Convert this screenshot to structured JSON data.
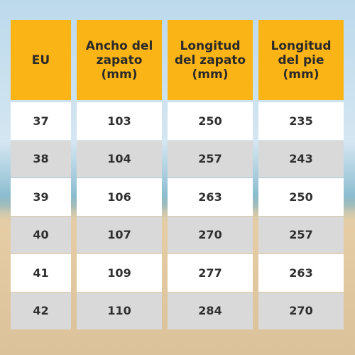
{
  "table": {
    "header": [
      "EU",
      "Ancho del zapato (mm)",
      "Longitud del zapato (mm)",
      "Longitud del pie (mm)"
    ],
    "rows": [
      [
        37,
        103,
        250,
        235
      ],
      [
        38,
        104,
        257,
        243
      ],
      [
        39,
        106,
        263,
        250
      ],
      [
        40,
        107,
        270,
        257
      ],
      [
        41,
        109,
        277,
        263
      ],
      [
        42,
        110,
        284,
        270
      ]
    ]
  }
}
